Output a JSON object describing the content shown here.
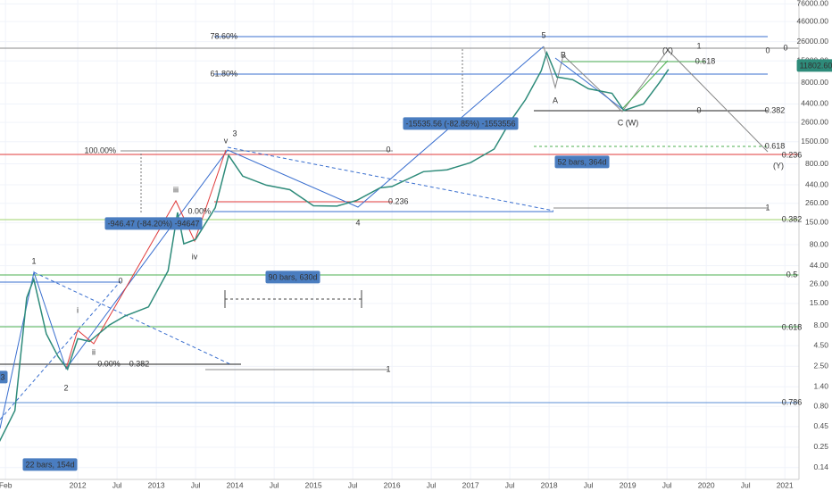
{
  "chart_data": {
    "type": "line",
    "log_scale": true,
    "grid": true,
    "color": "#2e8b7a",
    "x": [
      2011.0,
      2011.2,
      2011.35,
      2011.44,
      2011.6,
      2011.75,
      2011.87,
      2012.0,
      2012.15,
      2012.4,
      2012.6,
      2012.9,
      2013.15,
      2013.27,
      2013.35,
      2013.5,
      2013.75,
      2013.92,
      2014.1,
      2014.4,
      2014.7,
      2015.0,
      2015.3,
      2015.55,
      2015.85,
      2016.0,
      2016.4,
      2016.7,
      2017.0,
      2017.3,
      2017.5,
      2017.7,
      2017.9,
      2017.97,
      2018.1,
      2018.3,
      2018.5,
      2018.8,
      2018.95,
      2019.2,
      2019.4,
      2019.52
    ],
    "values": [
      0.29,
      0.71,
      17.6,
      30,
      6.3,
      3.3,
      2.3,
      5.5,
      5.1,
      8.1,
      10.5,
      13.6,
      38,
      200,
      82,
      93,
      229,
      1016,
      564,
      436,
      383,
      242,
      240,
      282,
      404,
      420,
      640,
      675,
      828,
      1216,
      2630,
      4990,
      11350,
      18970,
      9480,
      8790,
      6790,
      5970,
      3660,
      4400,
      8000,
      11800
    ],
    "xlim": [
      2011.01,
      2021.18
    ],
    "xticks": [
      {
        "value": 2011.08,
        "label": "Feb"
      },
      2012,
      {
        "value": 2012.5,
        "label": "Jul"
      },
      2013,
      {
        "value": 2013.5,
        "label": "Jul"
      },
      2014,
      {
        "value": 2014.5,
        "label": "Jul"
      },
      2015,
      {
        "value": 2015.5,
        "label": "Jul"
      },
      2016,
      {
        "value": 2016.5,
        "label": "Jul"
      },
      2017,
      {
        "value": 2017.5,
        "label": "Jul"
      },
      2018,
      {
        "value": 2018.5,
        "label": "Jul"
      },
      2019,
      {
        "value": 2019.5,
        "label": "Jul"
      },
      2020,
      {
        "value": 2020.5,
        "label": "Jul"
      },
      2021
    ],
    "ylim": [
      0.1,
      85000
    ],
    "yticks": [
      {
        "value": 76000,
        "label": "76000.00"
      },
      {
        "value": 46000,
        "label": "46000.00"
      },
      {
        "value": 26000,
        "label": "26000.00"
      },
      {
        "value": 15000,
        "label": "15000.00"
      },
      {
        "value": 8000,
        "label": "8000.00"
      },
      {
        "value": 4400,
        "label": "4400.00"
      },
      {
        "value": 2600,
        "label": "2600.00"
      },
      {
        "value": 1500,
        "label": "1500.00"
      },
      {
        "value": 800,
        "label": "800.00"
      },
      {
        "value": 440,
        "label": "440.00"
      },
      {
        "value": 260,
        "label": "260.00"
      },
      {
        "value": 150,
        "label": "150.00"
      },
      {
        "value": 80,
        "label": "80.00"
      },
      {
        "value": 44,
        "label": "44.00"
      },
      {
        "value": 26,
        "label": "26.00"
      },
      {
        "value": 15,
        "label": "15.00"
      },
      {
        "value": 8,
        "label": "8.00"
      },
      {
        "value": 4.5,
        "label": "4.50"
      },
      {
        "value": 2.5,
        "label": "2.50"
      },
      {
        "value": 1.4,
        "label": "1.40"
      },
      {
        "value": 0.8,
        "label": "0.80"
      },
      {
        "value": 0.45,
        "label": "0.45"
      },
      {
        "value": 0.25,
        "label": "0.25"
      },
      {
        "value": 0.14,
        "label": "0.14"
      }
    ],
    "annotations": [
      "5",
      "3",
      "1",
      "2",
      "4",
      "(X)",
      "(Y)",
      "B",
      "A",
      "C",
      "(W)",
      "iii",
      "iv",
      "v",
      "i",
      "ii",
      "78.60%",
      "61.80%",
      "100.00%",
      "0.00%",
      "0.236",
      "0.382",
      "0.618",
      "0.236",
      "0.382",
      "0.5",
      "0.618",
      "0.786",
      "0.618",
      "0.00%",
      "0.382",
      "-15535.56 (-82.85%) -1553556",
      "-946.47 (-84.20%) -94647",
      "90 bars, 630d",
      "52 bars, 364d",
      "22 bars, 154d",
      "11802.60",
      "3",
      "1",
      "1",
      "1",
      "0",
      "0",
      "0",
      "0",
      "0"
    ]
  }
}
